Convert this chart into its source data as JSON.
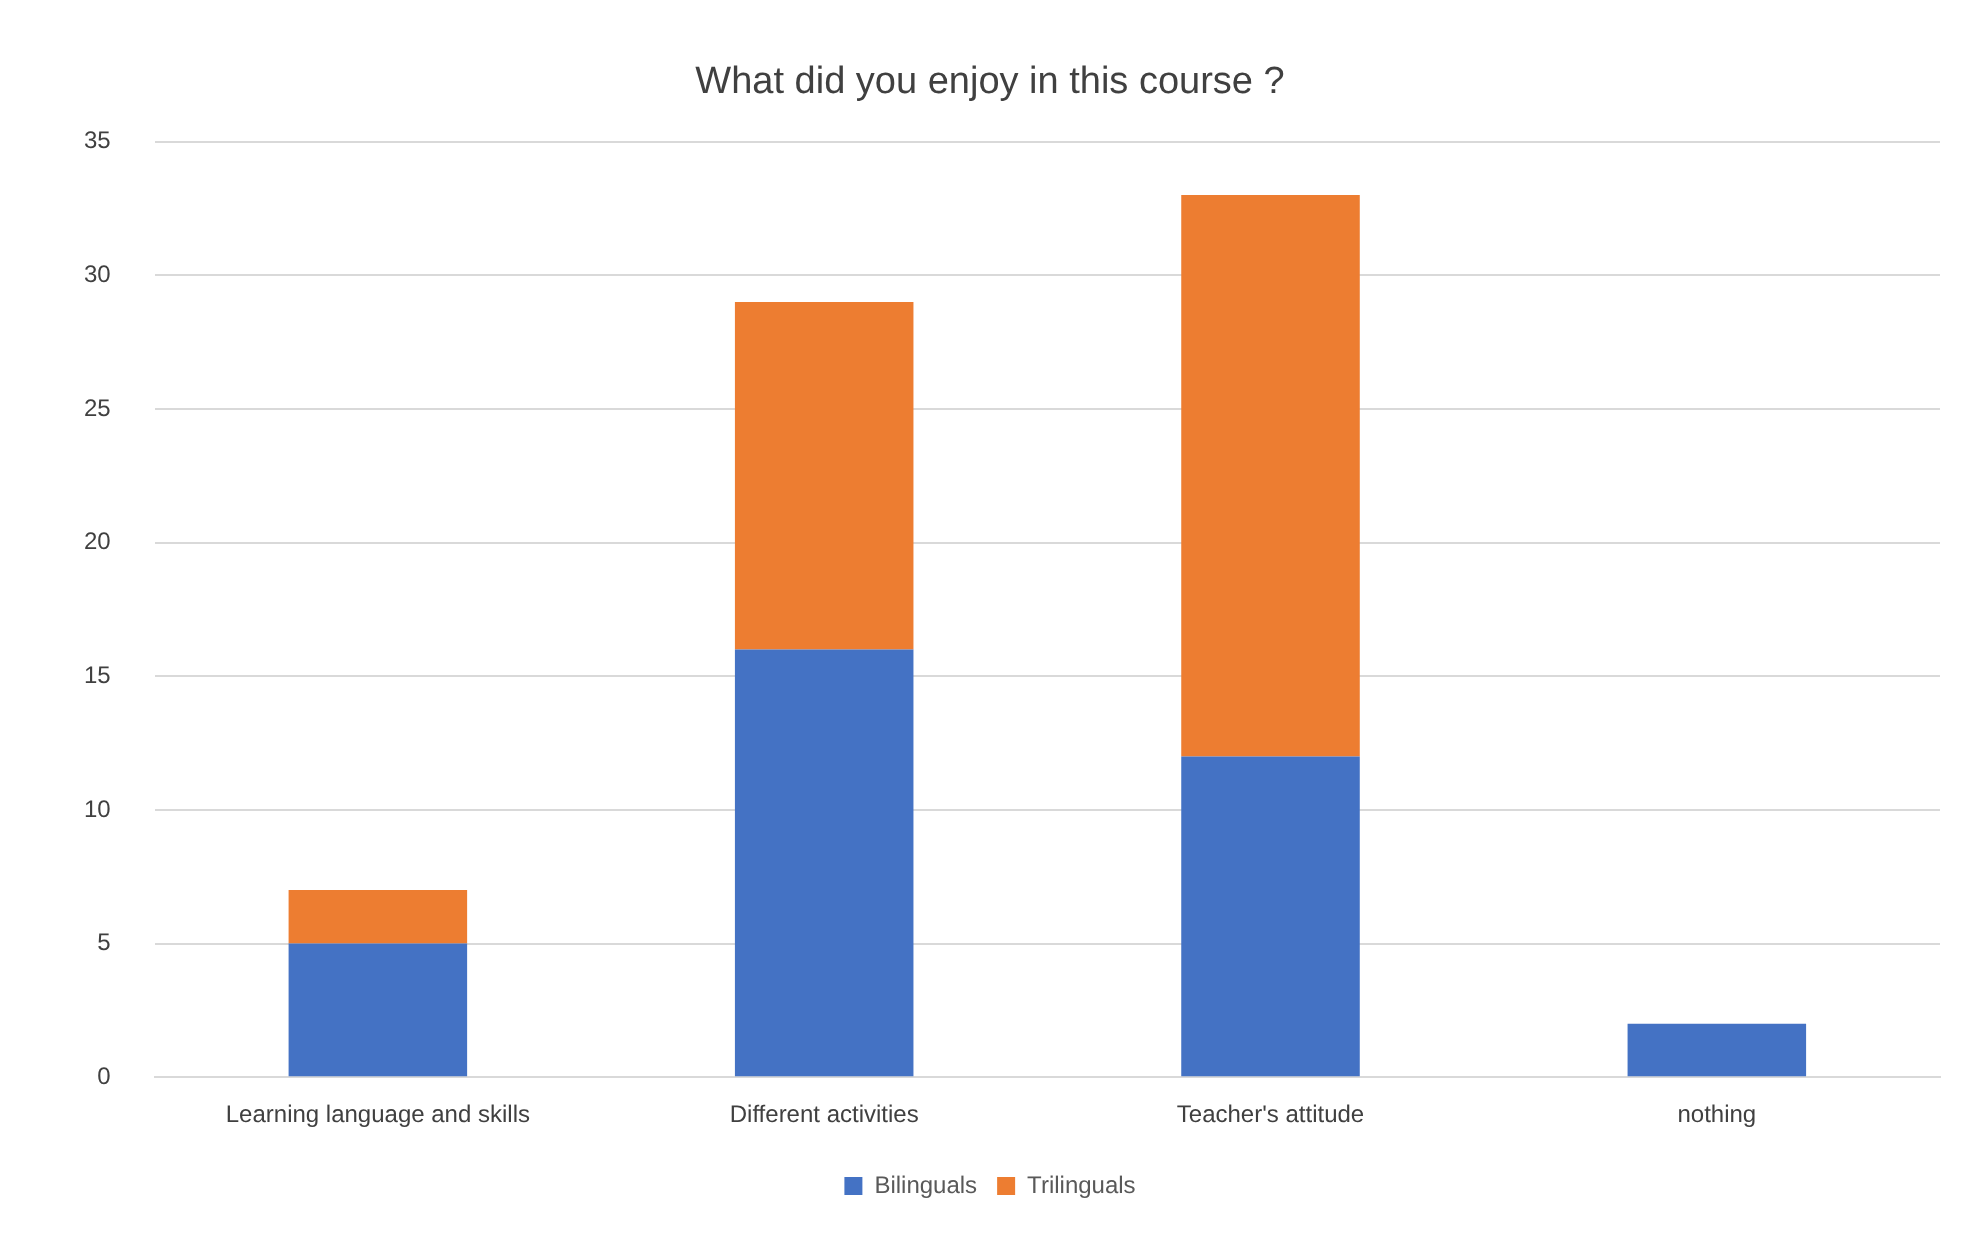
{
  "chart_data": {
    "type": "bar",
    "title": "What did you enjoy in this course ?",
    "categories": [
      "Learning language and skills",
      "Different activities",
      "Teacher's attitude",
      "nothing"
    ],
    "series": [
      {
        "name": "Bilinguals",
        "color": "#4472c4",
        "values": [
          5,
          16,
          12,
          2
        ]
      },
      {
        "name": "Trilinguals",
        "color": "#ed7d31",
        "values": [
          2,
          13,
          21,
          null
        ]
      }
    ],
    "stacked": true,
    "ylim": [
      0,
      35
    ],
    "yticks": [
      0,
      5,
      10,
      15,
      20,
      25,
      30,
      35
    ],
    "grid": "y",
    "legend": "bottom"
  }
}
